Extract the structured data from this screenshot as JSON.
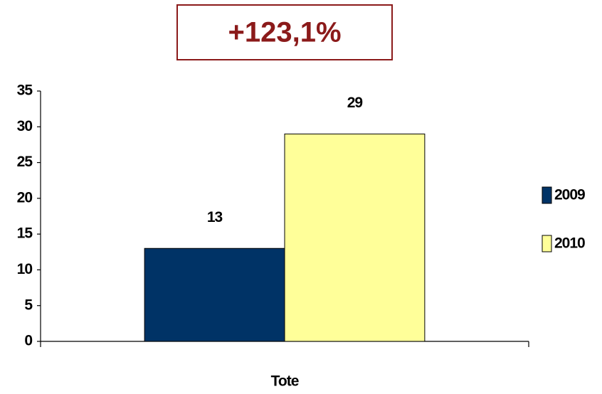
{
  "chart_data": {
    "type": "bar",
    "annotation": "+123,1%",
    "categories": [
      "Tote"
    ],
    "series": [
      {
        "name": "2009",
        "color": "#003366",
        "values": [
          13
        ]
      },
      {
        "name": "2010",
        "color": "#ffff99",
        "values": [
          29
        ]
      }
    ],
    "ylim": [
      0,
      35
    ],
    "yticks": [
      0,
      5,
      10,
      15,
      20,
      25,
      30,
      35
    ],
    "legend": "right"
  }
}
